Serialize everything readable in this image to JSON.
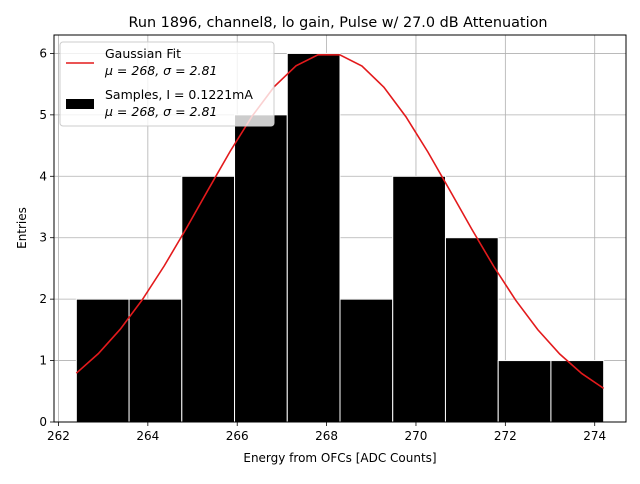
{
  "chart_data": {
    "type": "bar",
    "title": "Run 1896, channel8, lo gain, Pulse w/ 27.0 dB Attenuation",
    "xlabel": "Energy from OFCs [ADC Counts]",
    "ylabel": "Entries",
    "xlim": [
      261.9,
      274.7
    ],
    "ylim": [
      0,
      6.3
    ],
    "xticks": [
      262,
      264,
      266,
      268,
      270,
      272,
      274
    ],
    "yticks": [
      0,
      1,
      2,
      3,
      4,
      5,
      6
    ],
    "grid": true,
    "legend_position": "top-left",
    "histogram": {
      "name": "Samples, I = 0.1221mA",
      "stats": "μ = 268, σ = 2.81",
      "color": "#000000",
      "bin_edges": [
        262.4,
        263.58,
        264.76,
        265.94,
        267.12,
        268.3,
        269.48,
        270.66,
        271.84,
        273.02,
        274.2
      ],
      "values": [
        2,
        2,
        4,
        5,
        6,
        2,
        4,
        3,
        1,
        1
      ]
    },
    "fit": {
      "name": "Gaussian Fit",
      "stats": "μ = 268, σ = 2.81",
      "color": "#e31a1c",
      "amplitude": 6.0,
      "mu": 268.05,
      "sigma": 2.81,
      "x_range": [
        262.4,
        274.2
      ]
    },
    "legend": [
      {
        "label": "Gaussian Fit",
        "sub": "μ = 268, σ = 2.81",
        "kind": "line"
      },
      {
        "label": "Samples, I = 0.1221mA",
        "sub": "μ = 268, σ = 2.81",
        "kind": "patch"
      }
    ]
  }
}
